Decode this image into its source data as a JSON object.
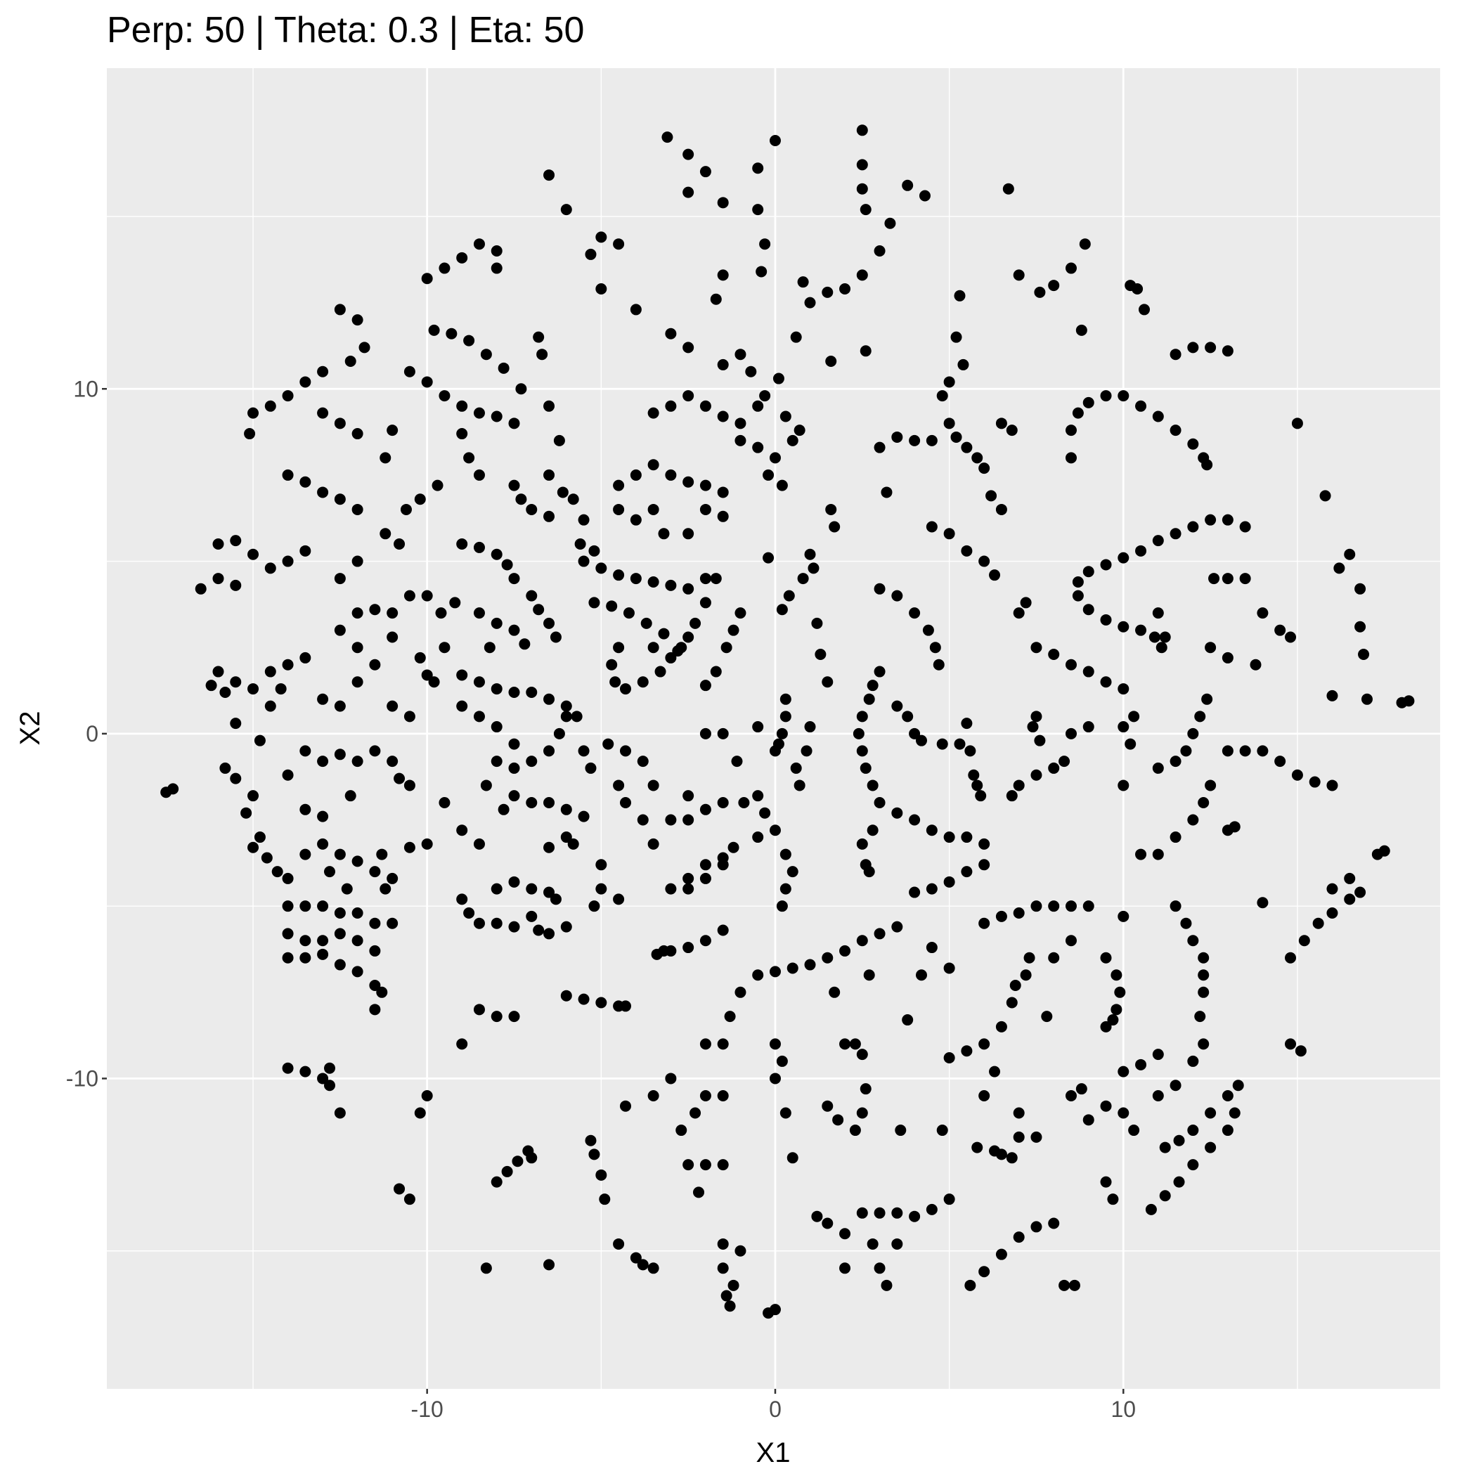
{
  "chart_data": {
    "type": "scatter",
    "title": "Perp: 50 | Theta: 0.3 | Eta: 50",
    "x_label": "X1",
    "y_label": "X2",
    "color": "#000000",
    "grid": true,
    "xlim": [
      -19.2,
      19.1
    ],
    "ylim": [
      -19,
      19.3
    ],
    "xticks": [
      -10,
      0,
      10
    ],
    "yticks": [
      -10,
      0,
      10
    ],
    "x": [
      2.5,
      2.5,
      2.5,
      2.6,
      -3.1,
      -2.5,
      -2,
      0,
      -0.5,
      -6.5,
      -6,
      -2.5,
      -1.5,
      -0.5,
      6.7,
      4.3,
      3.8,
      3.3,
      3,
      2.5,
      2,
      1.5,
      1,
      -0.3,
      -0.4,
      0.8,
      -5,
      -4.5,
      -5.3,
      -8,
      -8.5,
      -9,
      -9.5,
      -10,
      -8,
      -5,
      -4,
      -3,
      -2.5,
      -1.5,
      -1.7,
      -1,
      -1.5,
      0.6,
      1.6,
      2.6,
      5.3,
      5.2,
      5.4,
      5,
      4.8,
      7,
      7.6,
      8,
      8.5,
      8.9,
      8.8,
      10.4,
      10.6,
      10.2,
      12,
      12.5,
      13,
      11.5,
      -12.5,
      -12,
      -11.8,
      -12.2,
      -13,
      -13.5,
      -14,
      -14.5,
      -15,
      -15.1,
      -9.8,
      -9.3,
      -8.8,
      -8.3,
      -7.8,
      -7.3,
      -6.8,
      -6.7,
      -10.5,
      -10,
      -9.5,
      -9,
      -8.5,
      -8,
      -7.5,
      -13,
      -12.5,
      -12,
      -11,
      -11.2,
      -14,
      -13.5,
      -13,
      -12.5,
      -12,
      8.5,
      8.5,
      8.7,
      9,
      9.5,
      10,
      10.5,
      11,
      11.5,
      12,
      12.3,
      12.4,
      12.5,
      12,
      11.5,
      11,
      10.5,
      10,
      9.5,
      9,
      8.7,
      8.7,
      9,
      9.5,
      10,
      10.5,
      10.9,
      11.1,
      13,
      13.5,
      12.6,
      13,
      13.5,
      15.8,
      16.5,
      16.2,
      16.8,
      16.9,
      16.8,
      16,
      17,
      18,
      18.2,
      14.5,
      14,
      14.8,
      13.8,
      15,
      7.5,
      8,
      8.5,
      9,
      9.5,
      10,
      11,
      11.2,
      12.5,
      13,
      7,
      7.2,
      4.5,
      5,
      5.5,
      6,
      6.3,
      3,
      3.5,
      4,
      4.4,
      4.6,
      4.7,
      3,
      2.8,
      2.7,
      2.5,
      2.4,
      2.5,
      2.6,
      2.8,
      3,
      3.5,
      3.8,
      4,
      4.2,
      4.8,
      5.3,
      5.5,
      5.6,
      5.7,
      5.8,
      5.9,
      3.5,
      4,
      4.5,
      5,
      5.5,
      6,
      6,
      5.5,
      5,
      4.5,
      4,
      2.8,
      2.5,
      2.6,
      2.7,
      4,
      4.5,
      3.5,
      3,
      5,
      5.2,
      5.5,
      5.8,
      6,
      6.2,
      6.5,
      3.2,
      6.5,
      6.8,
      6.8,
      7,
      7.5,
      8,
      8.3,
      8.5,
      9,
      7.5,
      7.4,
      7.6,
      10,
      10.3,
      10.2,
      10,
      11,
      11.5,
      11.8,
      12,
      12.2,
      12.4,
      12.5,
      12.3,
      12,
      11.5,
      11,
      10.5,
      13,
      13.5,
      14,
      14.5,
      15,
      15.5,
      16,
      17.5,
      17.3,
      13,
      13.2,
      14,
      14.8,
      15.2,
      15.6,
      16,
      16.5,
      16.5,
      16.8,
      16,
      14.8,
      15.1,
      9.5,
      9.8,
      9.9,
      9.8,
      9.7,
      9.5,
      11.5,
      11.8,
      12,
      12.3,
      12.3,
      12.3,
      12.2,
      10,
      10.5,
      11,
      11,
      11.5,
      12,
      12.3,
      8.5,
      8.8,
      9,
      9.5,
      10,
      10.3,
      7,
      7,
      7.5,
      11.2,
      11.6,
      12,
      12.5,
      13,
      13.3,
      10.8,
      11.2,
      11.6,
      12,
      12.5,
      13,
      13.2,
      9.5,
      9.7,
      5.6,
      6,
      6.5,
      7,
      7.5,
      8,
      8.3,
      8.6,
      6.3,
      6.5,
      6.8,
      5.8,
      4.8,
      2.5,
      3,
      3.5,
      2.8,
      3.5,
      4,
      4.5,
      5,
      2,
      1.5,
      1.2,
      2,
      3,
      3.2,
      0,
      -0.2,
      -1.3,
      -1.4,
      -1.2,
      -1.5,
      -1,
      -1.5,
      -4.5,
      -4,
      -3.5,
      -3.8,
      -6.5,
      -8.3,
      -10.5,
      -10.8,
      -8,
      -7.7,
      -7.4,
      -7.1,
      -12.5,
      -14,
      -13.5,
      -13,
      -12.8,
      -12.8,
      -10,
      -10.2,
      -9,
      -8.5,
      -8,
      -7.5,
      -6,
      -5.5,
      -5,
      -4.5,
      -4.3,
      -3.2,
      -3,
      -2.5,
      -2,
      -1.5,
      -3.4,
      -7,
      -5.3,
      -5.2,
      -5,
      -4.9,
      -2.7,
      -2.3,
      -2,
      -1.5,
      -2.5,
      -2,
      -1.5,
      -2.2,
      -3.5,
      -4.3,
      -3,
      -1.5,
      -2,
      -1.3,
      -1,
      -0.5,
      0,
      0.5,
      1,
      1.5,
      2,
      2.5,
      3,
      3.5,
      0,
      0.2,
      0,
      0.3,
      0.5,
      2,
      2.3,
      2.5,
      2.6,
      2.5,
      3.6,
      1.5,
      1.8,
      2.3,
      4.5,
      5,
      4.2,
      3.8,
      2.7,
      1.7,
      5,
      5.5,
      6,
      6.5,
      6.8,
      6.9,
      6,
      6.5,
      7,
      7.5,
      8,
      8.5,
      9,
      10,
      7.3,
      7.2,
      8,
      8.5,
      7.8,
      6,
      6.3,
      -17.5,
      -17.3,
      -16.5,
      -16,
      -15.5,
      -15,
      -15.5,
      -16,
      -14.5,
      -14,
      -13.5,
      -16,
      -16.2,
      -15.8,
      -15.5,
      -15,
      -14.5,
      -14,
      -13.5,
      -14.2,
      -14.5,
      -15.5,
      -15.8,
      -15.5,
      -15,
      -15.2,
      -14.8,
      -15,
      -14.6,
      -14.3,
      -14,
      -13.5,
      -13,
      -12.5,
      -12,
      -14,
      -13.5,
      -13,
      -12.5,
      -12,
      -11.5,
      -11,
      -14,
      -13.5,
      -13,
      -12.5,
      -12,
      -11.5,
      -14,
      -13.5,
      -13,
      -12.5,
      -12,
      -11.5,
      -11.3,
      -11.5,
      -12.8,
      -12.3,
      -11.5,
      -11.3,
      -11.2,
      -11,
      -13.5,
      -13,
      -12.5,
      -12,
      -11.5,
      -11,
      -10.8,
      -10.5,
      -13,
      -12.5,
      -12,
      -11.5,
      -12,
      -12.5,
      -12,
      -11.5,
      -11,
      -11,
      -10.5,
      -10,
      -9.6,
      -9.5,
      -9.8,
      -10.2,
      -13.5,
      -13,
      -12.2,
      -14,
      -14.8,
      -10,
      -9,
      -8.5,
      -8,
      -7.5,
      -7,
      -6.5,
      -6,
      -5.7,
      -5.5,
      -5.3,
      -9,
      -8.5,
      -8,
      -7.5,
      -8,
      -7.5,
      -7,
      -6.5,
      -6.2,
      -6,
      -10.5,
      -11,
      -9.5,
      -9,
      -8.5,
      -10,
      -10.5,
      -8,
      -7.5,
      -7,
      -6.5,
      -6.3,
      -9,
      -8.8,
      -8.5,
      -8,
      -7.5,
      -7,
      -6.8,
      -6.5,
      -6,
      -7,
      -6.5,
      -6,
      -5.5,
      -6,
      -5.8,
      -6.5,
      -5,
      -5,
      -5.2,
      -4.5,
      -7.5,
      -7.8,
      -8.3,
      -4.8,
      -4.3,
      -3.8,
      -3.5,
      -3.8,
      -3.5,
      -4.5,
      -4.3,
      -2.5,
      -2,
      -1.5,
      -3,
      -2.5,
      -3,
      -2.5,
      -2,
      -1.5,
      -1.2,
      -5.5,
      -5,
      -4.5,
      -4,
      -3.5,
      -3,
      -2.5,
      -2,
      -1.7,
      -2,
      -2.3,
      -2.5,
      -2.8,
      -5.2,
      -4.7,
      -4.2,
      -3.7,
      -3.2,
      -2.7,
      -4.5,
      -4.7,
      -4.6,
      -4.3,
      -3.8,
      -3.3,
      -3,
      -3.5,
      -5.8,
      -5.5,
      -5.6,
      -5.2,
      -4.5,
      -4.5,
      -4,
      -3.5,
      -3,
      -2.5,
      -2,
      -1.5,
      -4,
      -3.5,
      -3.2,
      -2.5,
      -2,
      -1.5,
      -1,
      -0.5,
      0,
      -0.2,
      0.2,
      0.5,
      0.3,
      -0.5,
      -1,
      -1.5,
      -2,
      -2.5,
      -3,
      -3.5,
      -0.7,
      -0.3,
      0.1,
      0.7,
      -6.5,
      -6.2,
      -6.5,
      -6.1,
      -9,
      -8.8,
      -8.5,
      -9.7,
      -10.2,
      -10.6,
      -7.5,
      -7.3,
      -7,
      -6.5,
      -9,
      -8.5,
      -8,
      -7.7,
      -7.5,
      -7,
      -6.8,
      -6.5,
      -6.3,
      -8.5,
      -8,
      -7.5,
      -7.2,
      -9.2,
      -8.2,
      -10.8,
      -11.2,
      -12,
      -12.5,
      -0.2,
      1,
      1.1,
      0.8,
      0.4,
      0.2,
      -1,
      -1.2,
      -1.4,
      -1.7,
      -2,
      0.3,
      0.3,
      0.2,
      0.1,
      0,
      1.5,
      1.3,
      1.2,
      1.7,
      1.6,
      1,
      0.9,
      0.6,
      0.7,
      -0.5,
      -0.3,
      0,
      -0.5,
      0.3,
      0.5,
      0.3,
      0.2,
      -1.5,
      -2,
      -2.5,
      -0.9,
      -1.1,
      -0.5,
      -1.5,
      -2
    ],
    "values": [
      17.5,
      16.5,
      15.8,
      15.2,
      17.3,
      16.8,
      16.3,
      17.2,
      16.4,
      16.2,
      15.2,
      15.7,
      15.4,
      15.2,
      15.8,
      15.6,
      15.9,
      14.8,
      14,
      13.3,
      12.9,
      12.8,
      12.5,
      14.2,
      13.4,
      13.1,
      14.4,
      14.2,
      13.9,
      14,
      14.2,
      13.8,
      13.5,
      13.2,
      13.5,
      12.9,
      12.3,
      11.6,
      11.2,
      13.3,
      12.6,
      11,
      10.7,
      11.5,
      10.8,
      11.1,
      12.7,
      11.5,
      10.7,
      10.2,
      9.8,
      13.3,
      12.8,
      13,
      13.5,
      14.2,
      11.7,
      12.9,
      12.3,
      13,
      11.2,
      11.2,
      11.1,
      11,
      12.3,
      12,
      11.2,
      10.8,
      10.5,
      10.2,
      9.8,
      9.5,
      9.3,
      8.7,
      11.7,
      11.6,
      11.4,
      11,
      10.6,
      10,
      11.5,
      11,
      10.5,
      10.2,
      9.8,
      9.5,
      9.3,
      9.2,
      9,
      9.3,
      9,
      8.7,
      8.8,
      8,
      7.5,
      7.3,
      7,
      6.8,
      6.5,
      8,
      8.8,
      9.3,
      9.6,
      9.8,
      9.8,
      9.5,
      9.2,
      8.8,
      8.4,
      8,
      7.8,
      6.2,
      6,
      5.8,
      5.6,
      5.3,
      5.1,
      4.9,
      4.7,
      4.4,
      4,
      3.6,
      3.3,
      3.1,
      3,
      2.8,
      2.5,
      6.2,
      6,
      4.5,
      4.5,
      4.5,
      6.9,
      5.2,
      4.8,
      4.2,
      2.3,
      3.1,
      1.1,
      1,
      0.9,
      0.95,
      3,
      3.5,
      2.8,
      2,
      9,
      2.5,
      2.3,
      2,
      1.8,
      1.5,
      1.3,
      3.5,
      2.8,
      2.5,
      2.2,
      3.5,
      3.8,
      6,
      5.8,
      5.3,
      5,
      4.6,
      4.2,
      4,
      3.5,
      3,
      2.5,
      2,
      1.8,
      1.4,
      1,
      0.5,
      0,
      -0.5,
      -1,
      -1.5,
      -2,
      0.8,
      0.5,
      0,
      -0.2,
      -0.3,
      -0.3,
      0.3,
      -0.5,
      -1.2,
      -1.5,
      -1.8,
      -2.3,
      -2.5,
      -2.8,
      -3,
      -3,
      -3.2,
      -3.8,
      -4,
      -4.3,
      -4.5,
      -4.6,
      -2.8,
      -3.2,
      -3.8,
      -4,
      8.5,
      8.5,
      8.6,
      8.3,
      9,
      8.6,
      8.3,
      8,
      7.7,
      6.9,
      6.5,
      7,
      9,
      8.8,
      -1.8,
      -1.5,
      -1.2,
      -1,
      -0.8,
      0,
      0.2,
      0.5,
      0.2,
      -0.2,
      0.2,
      0.5,
      -0.3,
      -1.5,
      -1,
      -0.8,
      -0.5,
      0,
      0.5,
      1,
      -1.5,
      -2,
      -2.5,
      -3,
      -3.5,
      -3.5,
      -0.5,
      -0.5,
      -0.5,
      -0.8,
      -1.2,
      -1.4,
      -1.5,
      -3.4,
      -3.5,
      -2.8,
      -2.7,
      -4.9,
      -6.5,
      -6,
      -5.5,
      -5.2,
      -4.8,
      -4.2,
      -4.6,
      -4.5,
      -9,
      -9.2,
      -6.5,
      -7,
      -7.5,
      -8,
      -8.3,
      -8.5,
      -5,
      -5.5,
      -6,
      -6.5,
      -7,
      -7.5,
      -8.2,
      -9.8,
      -9.6,
      -9.3,
      -10.5,
      -10.2,
      -9.5,
      -9,
      -10.5,
      -10.3,
      -11.2,
      -10.8,
      -11,
      -11.5,
      -11,
      -11.7,
      -11.7,
      -12,
      -11.8,
      -11.5,
      -11,
      -10.5,
      -10.2,
      -13.8,
      -13.4,
      -13,
      -12.5,
      -12,
      -11.5,
      -11,
      -13,
      -13.5,
      -16,
      -15.6,
      -15.1,
      -14.6,
      -14.3,
      -14.2,
      -16,
      -16,
      -12.1,
      -12.2,
      -12.3,
      -12,
      -11.5,
      -13.9,
      -13.9,
      -13.9,
      -14.8,
      -14.8,
      -14,
      -13.8,
      -13.5,
      -14.5,
      -14.2,
      -14,
      -15.5,
      -15.5,
      -16,
      -16.7,
      -16.8,
      -16.6,
      -16.3,
      -16,
      -15.5,
      -15,
      -14.8,
      -14.8,
      -15.2,
      -15.5,
      -15.4,
      -15.4,
      -15.5,
      -13.5,
      -13.2,
      -13,
      -12.7,
      -12.4,
      -12.1,
      -11,
      -9.7,
      -9.8,
      -10,
      -9.7,
      -10.2,
      -10.5,
      -11,
      -9,
      -8,
      -8.2,
      -8.2,
      -7.6,
      -7.7,
      -7.8,
      -7.9,
      -7.9,
      -6.3,
      -6.3,
      -6.2,
      -6,
      -5.7,
      -6.4,
      -12.3,
      -11.8,
      -12.2,
      -12.8,
      -13.5,
      -11.5,
      -11,
      -10.5,
      -10.5,
      -12.5,
      -12.5,
      -12.5,
      -13.3,
      -10.5,
      -10.8,
      -10,
      -9,
      -9,
      -8.2,
      -7.5,
      -7,
      -6.9,
      -6.8,
      -6.7,
      -6.5,
      -6.3,
      -6,
      -5.8,
      -5.6,
      -9,
      -9.5,
      -10,
      -11,
      -12.3,
      -9,
      -9,
      -9.3,
      -10.3,
      -11,
      -11.5,
      -10.8,
      -11.2,
      -11.5,
      -6.2,
      -6.8,
      -7,
      -8.3,
      -7,
      -7.5,
      -9.4,
      -9.2,
      -9,
      -8.5,
      -7.8,
      -7.3,
      -5.5,
      -5.3,
      -5.2,
      -5,
      -5,
      -5,
      -5,
      -5.3,
      -6.5,
      -7,
      -6.5,
      -6,
      -8.2,
      -10.5,
      -9.8,
      -1.7,
      -1.6,
      4.2,
      4.5,
      4.3,
      5.2,
      5.6,
      5.5,
      4.8,
      5,
      5.3,
      1.8,
      1.4,
      1.2,
      1.5,
      1.3,
      1.8,
      2,
      2.2,
      1.3,
      0.8,
      0.3,
      -1,
      -1.3,
      -1.8,
      -2.3,
      -3,
      -3.3,
      -3.6,
      -4,
      -4.2,
      -3.5,
      -3.2,
      -3.5,
      -3.7,
      -5,
      -5,
      -5,
      -5.2,
      -5.2,
      -5.5,
      -5.5,
      -5.8,
      -6,
      -6,
      -5.8,
      -6,
      -6.3,
      -6.5,
      -6.5,
      -6.4,
      -6.7,
      -6.9,
      -7.3,
      -7.5,
      -8,
      -4,
      -4.5,
      -4,
      -3.5,
      -4.5,
      -4.2,
      -0.5,
      -0.8,
      -0.6,
      -0.8,
      -0.5,
      -0.8,
      -1.3,
      -1.5,
      1,
      0.8,
      1.5,
      2,
      2.5,
      3,
      3.5,
      3.6,
      3.5,
      2.8,
      4,
      4,
      3.5,
      2.5,
      1.5,
      2.2,
      -2.2,
      -2.4,
      -1.8,
      -1.2,
      -0.2,
      1.7,
      1.7,
      1.5,
      1.3,
      1.2,
      1.2,
      1,
      0.8,
      0.5,
      -0.5,
      -1,
      0.8,
      0.5,
      0.2,
      -0.3,
      -0.8,
      -1,
      -0.8,
      -0.5,
      0,
      0.5,
      0.5,
      0.8,
      -2,
      -2.8,
      -3.2,
      -3.2,
      -3.3,
      -4.5,
      -4.3,
      -4.5,
      -4.6,
      -4.8,
      -4.8,
      -5.2,
      -5.5,
      -5.5,
      -5.6,
      -5.3,
      -5.7,
      -5.8,
      -5.6,
      -2,
      -2,
      -2.2,
      -2.4,
      -3,
      -3.2,
      -3.3,
      -3.8,
      -4.5,
      -5,
      -4.8,
      -1.8,
      -2.2,
      -1.5,
      -0.3,
      -0.5,
      -0.8,
      -1.5,
      -2.5,
      -3.2,
      -1.5,
      -2,
      -1.8,
      -2.2,
      -2,
      -2.5,
      -2.5,
      -4.5,
      -4.2,
      -3.8,
      -3.6,
      -3.3,
      5,
      4.8,
      4.6,
      4.5,
      4.4,
      4.3,
      4.2,
      4.5,
      4.5,
      3.8,
      3.2,
      2.8,
      2.4,
      3.8,
      3.7,
      3.5,
      3.2,
      2.9,
      2.5,
      2.5,
      2,
      1.5,
      1.3,
      1.5,
      1.8,
      2.2,
      2.5,
      6.8,
      6.2,
      5.5,
      5.3,
      6.5,
      7.2,
      7.5,
      7.8,
      7.5,
      7.3,
      7.2,
      7,
      6.2,
      6.5,
      5.8,
      5.8,
      6.5,
      6.3,
      8.5,
      8.3,
      8,
      7.5,
      7.2,
      8.5,
      9.2,
      9.5,
      9,
      9.2,
      9.5,
      9.8,
      9.5,
      9.3,
      10.5,
      9.8,
      10.3,
      8.8,
      9.5,
      8.5,
      7.5,
      7,
      8.7,
      8,
      7.5,
      7.2,
      6.8,
      6.5,
      7.2,
      6.8,
      6.5,
      6.3,
      5.5,
      5.4,
      5.2,
      4.9,
      4.5,
      4,
      3.6,
      3.2,
      2.8,
      3.5,
      3.2,
      3,
      2.6,
      3.8,
      2.5,
      5.5,
      5.8,
      5,
      4.5,
      5.1,
      5.2,
      4.8,
      4.5,
      4,
      3.6,
      3.5,
      3,
      2.5,
      1.8,
      1.4,
      1,
      0.5,
      0,
      -0.3,
      -0.5,
      1.5,
      2.3,
      3.2,
      6,
      6.5,
      0.2,
      -0.5,
      -1,
      -1.5,
      -1.8,
      -2.3,
      -2.8,
      -3,
      -3.5,
      -4,
      -4.5,
      -5,
      -3.8,
      -4.2,
      -4.5,
      -2,
      -0.8,
      0.2,
      0,
      0
    ]
  }
}
